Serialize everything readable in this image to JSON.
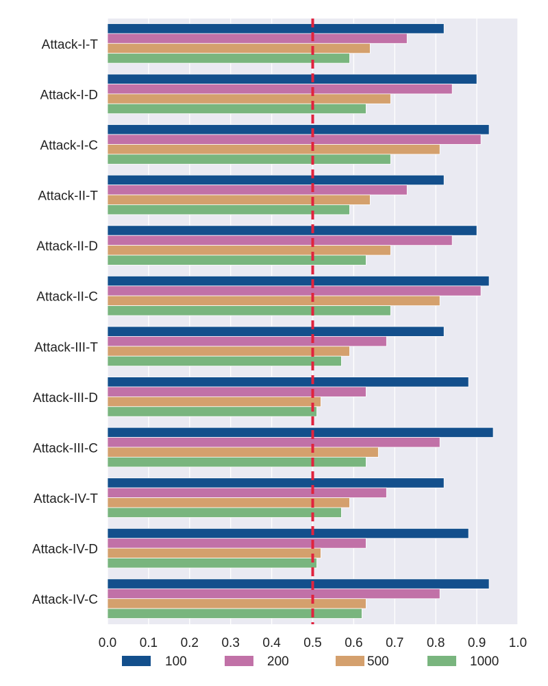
{
  "chart_data": {
    "type": "bar",
    "orientation": "horizontal",
    "categories": [
      "Attack-I-T",
      "Attack-I-D",
      "Attack-I-C",
      "Attack-II-T",
      "Attack-II-D",
      "Attack-II-C",
      "Attack-III-T",
      "Attack-III-D",
      "Attack-III-C",
      "Attack-IV-T",
      "Attack-IV-D",
      "Attack-IV-C"
    ],
    "series": [
      {
        "name": "100",
        "color": "#134f8c",
        "values": [
          0.82,
          0.9,
          0.93,
          0.82,
          0.9,
          0.93,
          0.82,
          0.88,
          0.94,
          0.82,
          0.88,
          0.93
        ]
      },
      {
        "name": "200",
        "color": "#c171a7",
        "values": [
          0.73,
          0.84,
          0.91,
          0.73,
          0.84,
          0.91,
          0.68,
          0.63,
          0.81,
          0.68,
          0.63,
          0.81
        ]
      },
      {
        "name": "500",
        "color": "#d4a06d",
        "values": [
          0.64,
          0.69,
          0.81,
          0.64,
          0.69,
          0.81,
          0.59,
          0.52,
          0.66,
          0.59,
          0.52,
          0.63
        ]
      },
      {
        "name": "1000",
        "color": "#79b57e",
        "values": [
          0.59,
          0.63,
          0.69,
          0.59,
          0.63,
          0.69,
          0.57,
          0.51,
          0.63,
          0.57,
          0.51,
          0.62
        ]
      }
    ],
    "xlim": [
      0.0,
      1.0
    ],
    "xticks": [
      "0.0",
      "0.1",
      "0.2",
      "0.3",
      "0.4",
      "0.5",
      "0.6",
      "0.7",
      "0.8",
      "0.9",
      "1.0"
    ],
    "reference_line": {
      "x": 0.5,
      "color": "#e0233e",
      "style": "dashed"
    },
    "grid": true,
    "plot_background": "#eaeaf2",
    "legend_position": "bottom"
  }
}
